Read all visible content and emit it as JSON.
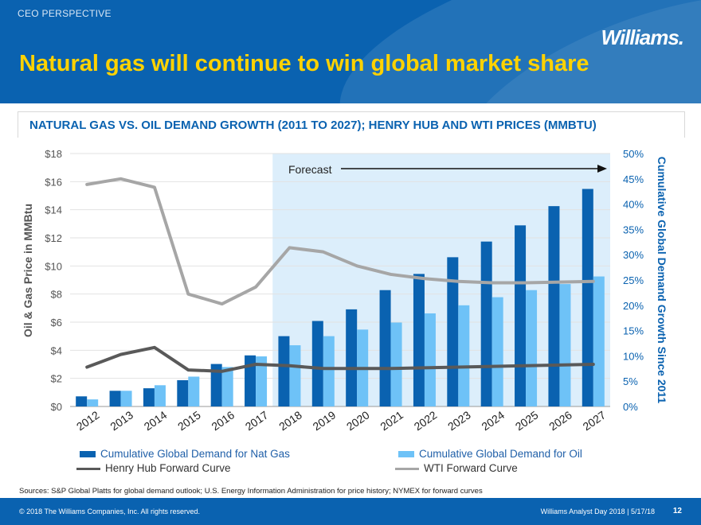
{
  "header": {
    "section_label": "CEO PERSPECTIVE",
    "logo": "Williams.",
    "title": "Natural gas will continue to win global market share"
  },
  "chart_header": {
    "title": "NATURAL GAS VS. OIL DEMAND GROWTH (2011 TO 2027); HENRY HUB AND WTI PRICES (MMBTU)"
  },
  "colors": {
    "brand_blue": "#0a62b0",
    "gas_bar": "#0a62b0",
    "oil_bar": "#6ec2f7",
    "henry_hub": "#595959",
    "wti": "#a6a6a6",
    "forecast_shade": "#dceefb",
    "title_yellow": "#ffd200"
  },
  "chart_data": {
    "type": "bar+line",
    "title": "NATURAL GAS VS. OIL DEMAND GROWTH (2011 TO 2027); HENRY HUB AND WTI PRICES (MMBTU)",
    "categories": [
      "2012",
      "2013",
      "2014",
      "2015",
      "2016",
      "2017",
      "2018",
      "2019",
      "2020",
      "2021",
      "2022",
      "2023",
      "2024",
      "2025",
      "2026",
      "2027"
    ],
    "y_left": {
      "label": "Oil & Gas Price in MMBtu",
      "ylim": [
        0,
        18
      ],
      "ticks": [
        "$0",
        "$2",
        "$4",
        "$6",
        "$8",
        "$10",
        "$12",
        "$14",
        "$16",
        "$18"
      ]
    },
    "y_right": {
      "label": "Cumulative Global Demand Growth Since 2011",
      "ylim": [
        0,
        50
      ],
      "ticks": [
        "0%",
        "5%",
        "10%",
        "15%",
        "20%",
        "25%",
        "30%",
        "35%",
        "40%",
        "45%",
        "50%"
      ]
    },
    "forecast": {
      "label": "Forecast",
      "start_category": "2018"
    },
    "series": [
      {
        "name": "Cumulative Global Demand for Nat Gas",
        "type": "bar",
        "axis": "right",
        "values": [
          2.0,
          3.1,
          3.6,
          5.2,
          8.4,
          10.1,
          13.9,
          16.9,
          19.2,
          23.0,
          26.2,
          29.5,
          32.6,
          35.8,
          39.6,
          43.0
        ]
      },
      {
        "name": "Cumulative Global Demand for Oil",
        "type": "bar",
        "axis": "right",
        "values": [
          1.4,
          3.1,
          4.2,
          5.9,
          7.8,
          9.9,
          12.1,
          13.9,
          15.2,
          16.6,
          18.4,
          20.0,
          21.6,
          23.0,
          24.2,
          25.7
        ]
      },
      {
        "name": "Henry Hub Forward Curve",
        "type": "line",
        "axis": "left",
        "values": [
          2.8,
          3.7,
          4.2,
          2.6,
          2.5,
          3.0,
          2.9,
          2.7,
          2.7,
          2.7,
          2.75,
          2.8,
          2.85,
          2.9,
          2.95,
          3.0
        ]
      },
      {
        "name": "WTI Forward Curve",
        "type": "line",
        "axis": "left",
        "values": [
          15.8,
          16.2,
          15.6,
          8.0,
          7.3,
          8.5,
          11.3,
          11.0,
          10.0,
          9.4,
          9.1,
          8.9,
          8.8,
          8.8,
          8.85,
          8.9
        ]
      }
    ]
  },
  "legend": {
    "gas": "Cumulative Global Demand for Nat Gas",
    "oil": "Cumulative Global Demand for Oil",
    "henry_hub": "Henry Hub Forward Curve",
    "wti": "WTI Forward Curve"
  },
  "sources": "Sources: S&P Global Platts for global demand outlook; U.S. Energy Information Administration for price history; NYMEX for forward curves",
  "footer": {
    "copyright": "© 2018 The Williams Companies, Inc. All rights reserved.",
    "event": "Williams Analyst Day 2018 | 5/17/18",
    "page": "12"
  }
}
